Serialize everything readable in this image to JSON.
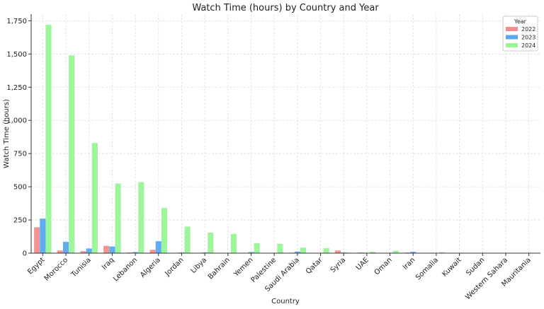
{
  "chart_data": {
    "type": "bar",
    "title": "Watch Time (hours) by Country and Year",
    "xlabel": "Country",
    "ylabel": "Watch Time (hours)",
    "ylim": [
      0,
      1800
    ],
    "yticks": [
      0,
      250,
      500,
      750,
      1000,
      1250,
      1500,
      1750
    ],
    "grid": true,
    "legend_title": "Year",
    "legend_position": "top-right",
    "categories": [
      "Egypt",
      "Morocco",
      "Tunisia",
      "Iraq",
      "Lebanon",
      "Algeria",
      "Jordan",
      "Libya",
      "Bahrain",
      "Yemen",
      "Palestine",
      "Saudi Arabia",
      "Qatar",
      "Syria",
      "UAE",
      "Oman",
      "Iran",
      "Somalia",
      "Kuwait",
      "Sudan",
      "Western Sahara",
      "Mauritania"
    ],
    "series": [
      {
        "name": "2022",
        "color": "#f28e8e",
        "values": [
          195,
          20,
          15,
          55,
          5,
          25,
          3,
          0,
          0,
          0,
          0,
          3,
          0,
          20,
          5,
          0,
          5,
          2,
          0,
          0,
          0,
          0
        ]
      },
      {
        "name": "2023",
        "color": "#5aa9f0",
        "values": [
          260,
          85,
          35,
          50,
          8,
          90,
          5,
          5,
          0,
          8,
          0,
          12,
          0,
          5,
          2,
          0,
          10,
          0,
          2,
          0,
          0,
          0
        ]
      },
      {
        "name": "2024",
        "color": "#98f598",
        "values": [
          1720,
          1490,
          830,
          525,
          535,
          340,
          200,
          155,
          145,
          75,
          70,
          42,
          38,
          0,
          10,
          18,
          0,
          7,
          3,
          2,
          1,
          0
        ]
      }
    ]
  }
}
